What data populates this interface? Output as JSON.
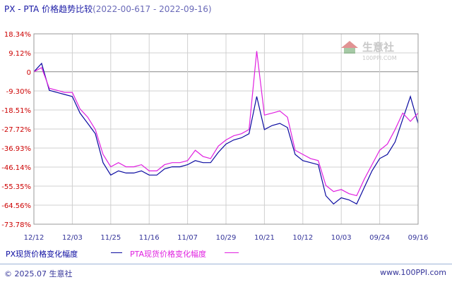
{
  "header": {
    "title": "PX - PTA 价格趋势比较",
    "subtitle": "(2022-00-617 - 2022-09-16)"
  },
  "watermark": {
    "text": "生意社",
    "url": "100PPI.COM"
  },
  "legend": {
    "px_label": "PX现货价格变化幅度",
    "pta_label": "PTA现货价格变化幅度"
  },
  "footer": {
    "copyright": "© 2025.07 生意社",
    "site": "www.100PPI.com"
  },
  "colors": {
    "px": "#0a0aa0",
    "pta": "#e020e0",
    "axis_text": "#cc0000",
    "grid": "#d0d0d0",
    "footer_line": "#9db3d6"
  },
  "chart_data": {
    "type": "line",
    "title": "PX - PTA 价格趋势比较",
    "y_ticks": [
      "18.34%",
      "9.12%",
      "0",
      "-9.30%",
      "-18.51%",
      "-27.72%",
      "-36.93%",
      "-46.14%",
      "-55.35%",
      "-64.56%",
      "-73.78%"
    ],
    "y_tick_values": [
      18.34,
      9.12,
      0,
      -9.3,
      -18.51,
      -27.72,
      -36.93,
      -46.14,
      -55.35,
      -64.56,
      -73.78
    ],
    "ylim": [
      -73.78,
      18.34
    ],
    "x_ticks": [
      "12/12",
      "12/03",
      "11/25",
      "11/16",
      "11/07",
      "10/29",
      "10/21",
      "10/12",
      "10/03",
      "09/24",
      "09/16"
    ],
    "grid": true,
    "legend_position": "bottom",
    "series": [
      {
        "name": "PX现货价格变化幅度",
        "x": [
          0,
          0.2,
          0.4,
          0.6,
          0.8,
          1.0,
          1.2,
          1.4,
          1.6,
          1.8,
          2.0,
          2.2,
          2.4,
          2.6,
          2.8,
          3.0,
          3.2,
          3.4,
          3.6,
          3.8,
          4.0,
          4.2,
          4.4,
          4.6,
          4.8,
          5.0,
          5.2,
          5.4,
          5.6,
          5.8,
          6.0,
          6.2,
          6.4,
          6.6,
          6.8,
          7.0,
          7.2,
          7.4,
          7.6,
          7.8,
          8.0,
          8.2,
          8.4,
          8.6,
          8.8,
          9.0,
          9.2,
          9.4,
          9.6,
          9.8,
          10.0
        ],
        "values": [
          0,
          4,
          -9,
          -10,
          -11,
          -12,
          -20,
          -25,
          -30,
          -44,
          -50,
          -48,
          -49,
          -49,
          -48,
          -50,
          -50,
          -47,
          -46,
          -46,
          -45,
          -43,
          -44,
          -44,
          -39,
          -35,
          -33,
          -32,
          -30,
          -12,
          -28,
          -26,
          -25,
          -27,
          -40,
          -43,
          -44,
          -45,
          -60,
          -64,
          -61,
          -62,
          -64,
          -56,
          -48,
          -42,
          -40,
          -34,
          -23,
          -12,
          -25
        ]
      },
      {
        "name": "PTA现货价格变化幅度",
        "x": [
          0,
          0.2,
          0.4,
          0.6,
          0.8,
          1.0,
          1.2,
          1.4,
          1.6,
          1.8,
          2.0,
          2.2,
          2.4,
          2.6,
          2.8,
          3.0,
          3.2,
          3.4,
          3.6,
          3.8,
          4.0,
          4.2,
          4.4,
          4.6,
          4.8,
          5.0,
          5.2,
          5.4,
          5.6,
          5.8,
          6.0,
          6.2,
          6.4,
          6.6,
          6.8,
          7.0,
          7.2,
          7.4,
          7.6,
          7.8,
          8.0,
          8.2,
          8.4,
          8.6,
          8.8,
          9.0,
          9.2,
          9.4,
          9.6,
          9.8,
          10.0
        ],
        "values": [
          0,
          2,
          -8,
          -9,
          -10,
          -10,
          -18,
          -22,
          -28,
          -40,
          -46,
          -44,
          -46,
          -46,
          -45,
          -48,
          -48,
          -45,
          -44,
          -44,
          -43,
          -38,
          -41,
          -42,
          -36,
          -33,
          -31,
          -30,
          -28,
          10,
          -21,
          -20,
          -19,
          -22,
          -38,
          -40,
          -42,
          -43,
          -55,
          -58,
          -57,
          -59,
          -60,
          -52,
          -45,
          -38,
          -35,
          -28,
          -20,
          -24,
          -20
        ]
      }
    ]
  }
}
